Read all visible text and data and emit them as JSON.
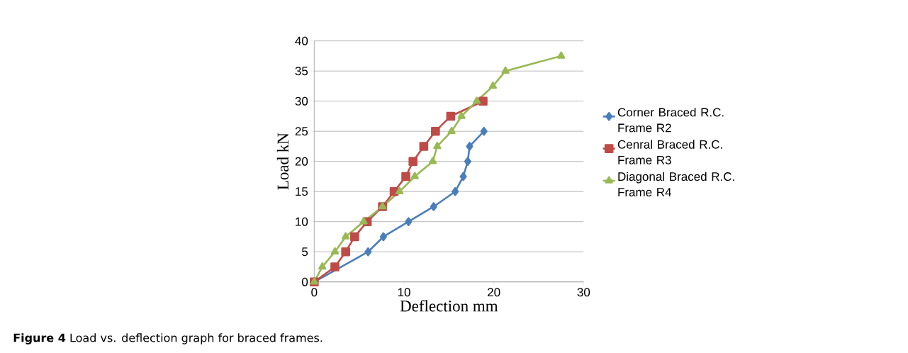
{
  "chart_data": {
    "type": "line",
    "xlabel": "Deflection  mm",
    "ylabel": "Load  kN",
    "xlim": [
      0,
      30
    ],
    "xticks": [
      0,
      10,
      20,
      30
    ],
    "ylim": [
      0,
      40
    ],
    "yticks": [
      0,
      5,
      10,
      15,
      20,
      25,
      30,
      35,
      40
    ],
    "grid": "y",
    "legend": "right",
    "line_style": "solid",
    "annotations": [
      "**Figure 4** Load vs. deflection graph for braced frames."
    ],
    "series": [
      {
        "name": "Corner Braced R.C. Frame R2",
        "color": "#4a7ebb",
        "marker": "diamond",
        "x": [
          0,
          6.0,
          7.7,
          10.5,
          13.3,
          15.7,
          16.6,
          17.1,
          17.3,
          18.9
        ],
        "values": [
          0,
          5,
          7.5,
          10,
          12.5,
          15,
          17.5,
          20,
          22.5,
          25
        ]
      },
      {
        "name": "Cenral Braced R.C. Frame R3",
        "color": "#be4b48",
        "marker": "square",
        "x": [
          0,
          2.3,
          3.5,
          4.5,
          5.9,
          7.6,
          8.9,
          10.2,
          11.0,
          12.2,
          13.5,
          15.2,
          18.8
        ],
        "values": [
          0,
          2.5,
          5,
          7.5,
          10,
          12.5,
          15,
          17.5,
          20,
          22.5,
          25,
          27.5,
          30
        ]
      },
      {
        "name": "Diagonal Braced R.C. Frame R4",
        "color": "#98b954",
        "marker": "triangle",
        "x": [
          0,
          0.9,
          2.3,
          3.5,
          5.5,
          7.6,
          9.5,
          11.2,
          13.2,
          13.7,
          15.3,
          16.4,
          18.1,
          19.9,
          21.3,
          27.5
        ],
        "values": [
          0,
          2.5,
          5,
          7.5,
          10,
          12.5,
          15,
          17.5,
          20,
          22.5,
          25,
          27.5,
          30,
          32.5,
          35,
          37.5
        ]
      }
    ]
  }
}
